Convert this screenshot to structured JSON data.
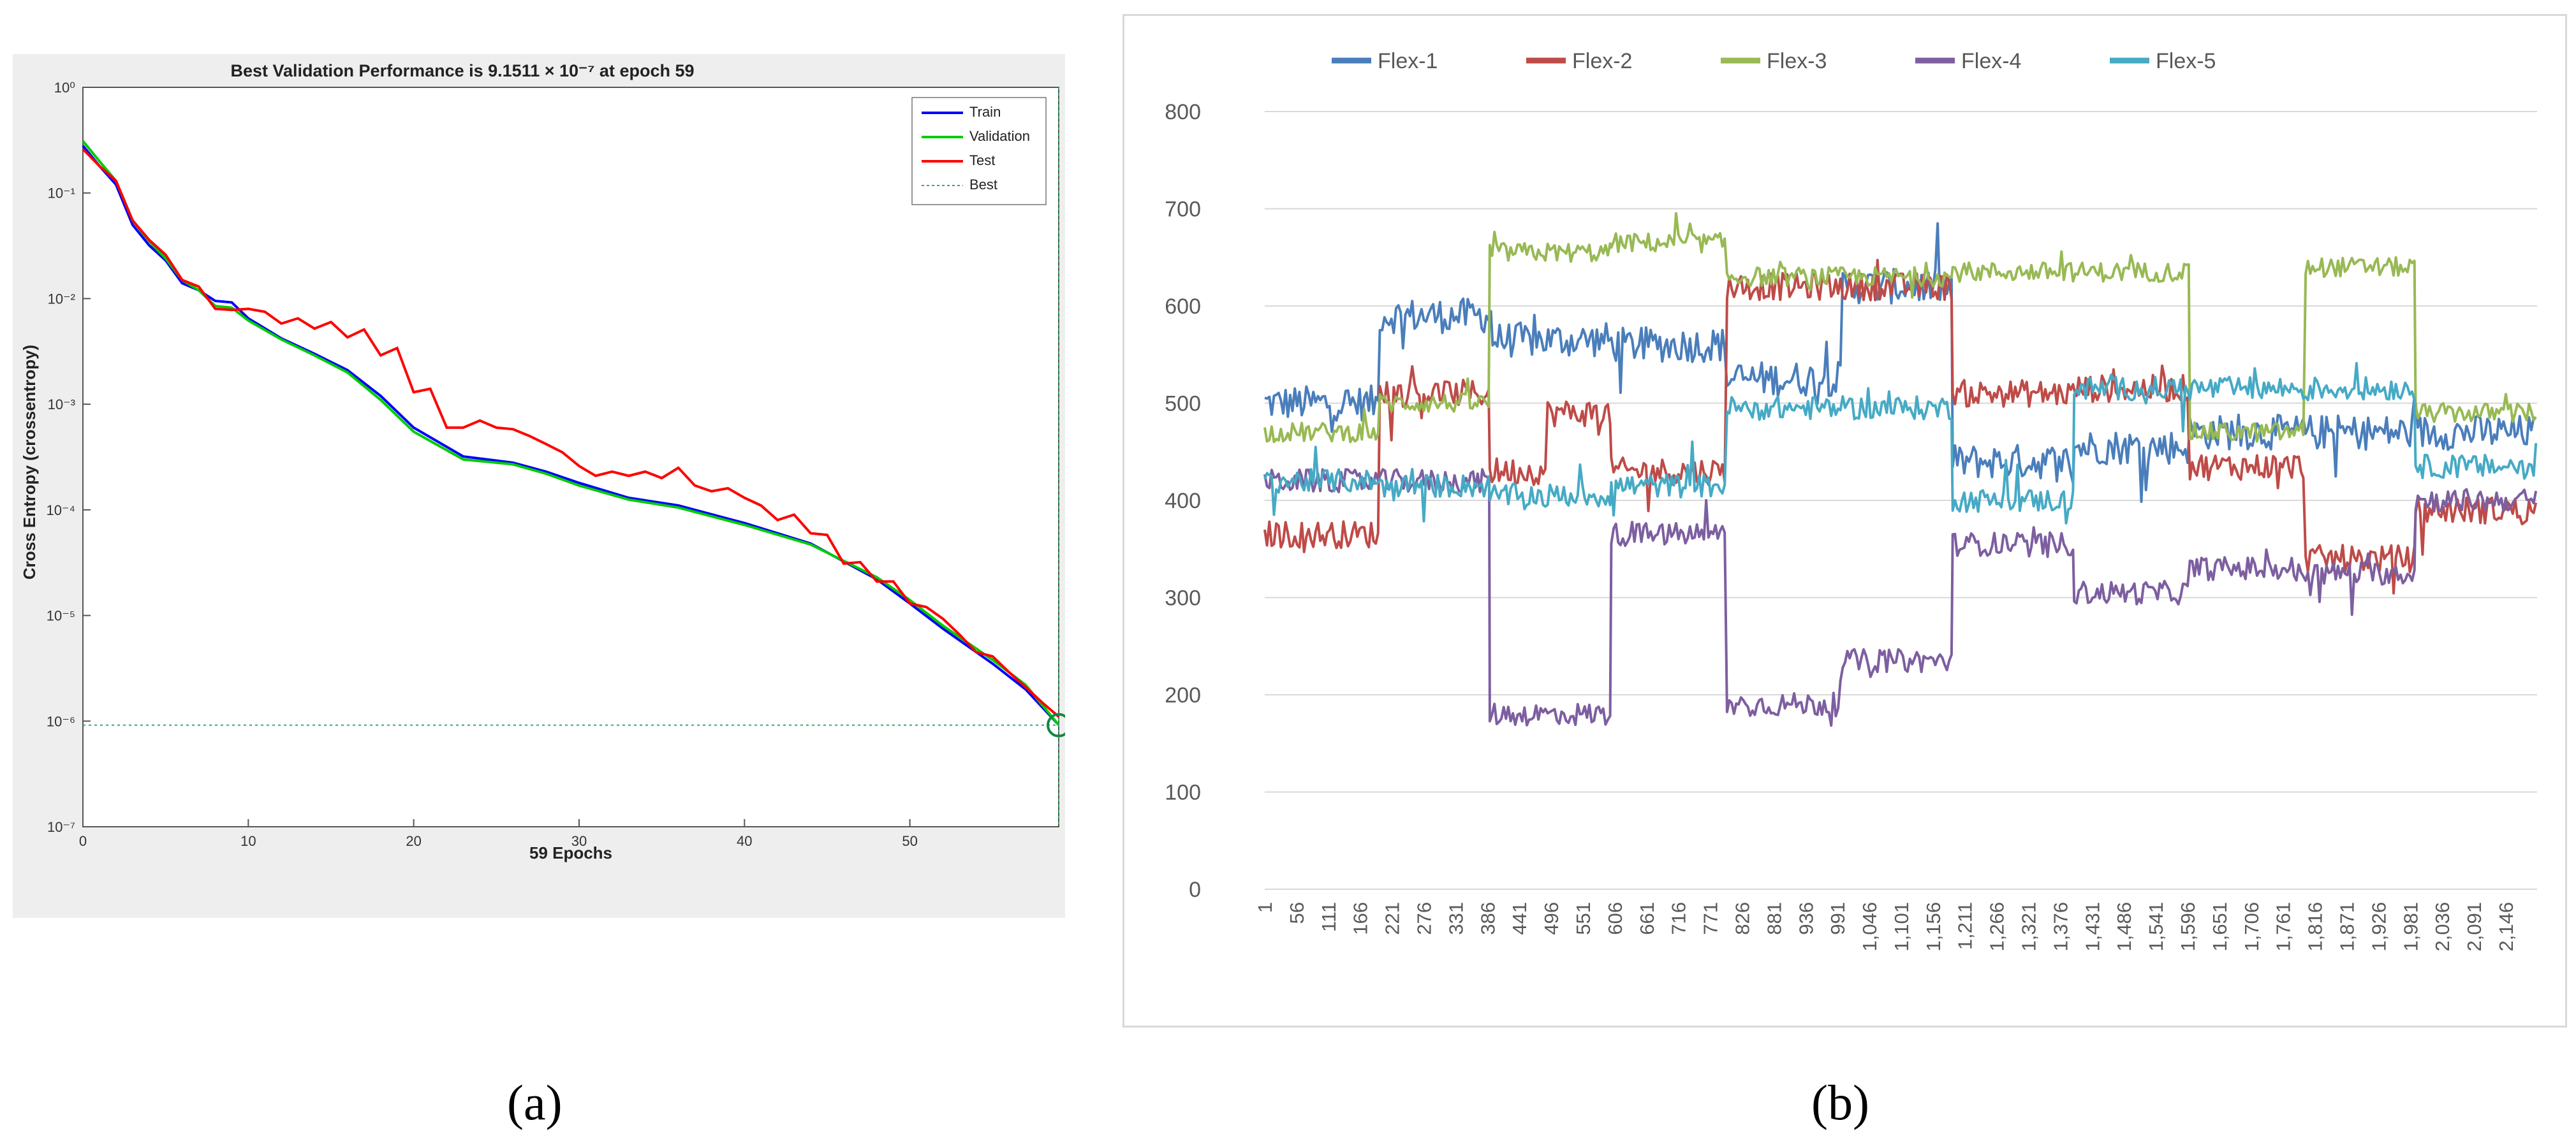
{
  "figure": {
    "caption_a": "(a)",
    "caption_b": "(b)"
  },
  "chart_data": [
    {
      "type": "line",
      "title": "Best Validation Performance is 9.1511 × 10⁻⁷ at epoch 59",
      "xlabel": "59 Epochs",
      "ylabel": "Cross Entropy  (crossentropy)",
      "yscale": "log",
      "xlim": [
        0,
        59
      ],
      "ylim_exp": [
        -7,
        0
      ],
      "xticks": [
        0,
        10,
        20,
        30,
        40,
        50
      ],
      "yticks": [
        {
          "exp": 0,
          "label": "10⁰"
        },
        {
          "exp": -1,
          "label": "10⁻¹"
        },
        {
          "exp": -2,
          "label": "10⁻²"
        },
        {
          "exp": -3,
          "label": "10⁻³"
        },
        {
          "exp": -4,
          "label": "10⁻⁴"
        },
        {
          "exp": -5,
          "label": "10⁻⁵"
        },
        {
          "exp": -6,
          "label": "10⁻⁶"
        },
        {
          "exp": -7,
          "label": "10⁻⁷"
        }
      ],
      "best": {
        "epoch": 59,
        "value": 9.1511e-07
      },
      "legend": [
        "Train",
        "Validation",
        "Test",
        "Best"
      ],
      "series": [
        {
          "name": "Train",
          "color": "#0000ff",
          "x": [
            0,
            1,
            2,
            3,
            4,
            5,
            6,
            7,
            8,
            9,
            10,
            12,
            14,
            16,
            18,
            20,
            23,
            26,
            28,
            30,
            33,
            36,
            40,
            44,
            48,
            50,
            52,
            55,
            57,
            59
          ],
          "values": [
            0.28,
            0.18,
            0.12,
            0.05,
            0.032,
            0.023,
            0.014,
            0.012,
            0.0095,
            0.0092,
            0.0065,
            0.0042,
            0.003,
            0.0021,
            0.0012,
            0.0006,
            0.00032,
            0.00028,
            0.00023,
            0.00018,
            0.00013,
            0.00011,
            7.5e-05,
            4.8e-05,
            2.2e-05,
            1.3e-05,
            7.5e-06,
            3.5e-06,
            2e-06,
            9.2e-07
          ]
        },
        {
          "name": "Validation",
          "color": "#00cc00",
          "x": [
            0,
            1,
            2,
            3,
            4,
            5,
            6,
            7,
            8,
            9,
            10,
            12,
            14,
            16,
            18,
            20,
            23,
            26,
            28,
            30,
            33,
            36,
            40,
            44,
            48,
            50,
            52,
            55,
            57,
            59
          ],
          "values": [
            0.31,
            0.2,
            0.13,
            0.055,
            0.035,
            0.024,
            0.015,
            0.012,
            0.0085,
            0.0082,
            0.0062,
            0.0041,
            0.0029,
            0.002,
            0.0011,
            0.00055,
            0.0003,
            0.00027,
            0.00022,
            0.00017,
            0.000125,
            0.000105,
            7.2e-05,
            4.7e-05,
            2.3e-05,
            1.4e-05,
            8e-06,
            3.8e-06,
            2.2e-06,
            9.2e-07
          ]
        },
        {
          "name": "Test",
          "color": "#ff0000",
          "x": [
            0,
            1,
            2,
            3,
            4,
            5,
            6,
            7,
            8,
            9,
            10,
            11,
            12,
            13,
            14,
            15,
            16,
            17,
            18,
            19,
            20,
            21,
            22,
            23,
            24,
            25,
            26,
            27,
            28,
            29,
            30,
            31,
            32,
            33,
            34,
            35,
            36,
            37,
            38,
            39,
            40,
            41,
            42,
            43,
            44,
            45,
            46,
            47,
            48,
            49,
            50,
            51,
            52,
            53,
            54,
            55,
            56,
            57,
            58,
            59
          ],
          "values": [
            0.26,
            0.18,
            0.13,
            0.055,
            0.036,
            0.026,
            0.015,
            0.013,
            0.008,
            0.0078,
            0.008,
            0.0075,
            0.0058,
            0.0065,
            0.0052,
            0.006,
            0.0043,
            0.0051,
            0.0029,
            0.0034,
            0.0013,
            0.0014,
            0.0006,
            0.0006,
            0.0007,
            0.0006,
            0.00058,
            0.0005,
            0.00042,
            0.00035,
            0.00026,
            0.00021,
            0.00023,
            0.00021,
            0.00023,
            0.0002,
            0.00025,
            0.00017,
            0.00015,
            0.00016,
            0.00013,
            0.00011,
            8e-05,
            9e-05,
            6e-05,
            5.8e-05,
            3.1e-05,
            3.2e-05,
            2.1e-05,
            2.1e-05,
            1.3e-05,
            1.2e-05,
            9.3e-06,
            6.6e-06,
            4.5e-06,
            4.1e-06,
            2.9e-06,
            2.1e-06,
            1.5e-06,
            1.1e-06
          ]
        }
      ]
    },
    {
      "type": "line",
      "title": "",
      "xlabel": "",
      "ylabel": "",
      "ylim": [
        0,
        800
      ],
      "yticks": [
        0,
        100,
        200,
        300,
        400,
        500,
        600,
        700,
        800
      ],
      "xlim": [
        1,
        2200
      ],
      "xticks": [
        1,
        56,
        111,
        166,
        221,
        276,
        331,
        386,
        441,
        496,
        551,
        606,
        661,
        716,
        771,
        826,
        881,
        936,
        991,
        1046,
        1101,
        1156,
        1211,
        1266,
        1321,
        1376,
        1431,
        1486,
        1541,
        1596,
        1651,
        1706,
        1761,
        1816,
        1871,
        1926,
        1981,
        2036,
        2091,
        2146
      ],
      "xtick_labels": [
        "1",
        "56",
        "111",
        "166",
        "221",
        "276",
        "331",
        "386",
        "441",
        "496",
        "551",
        "606",
        "661",
        "716",
        "771",
        "826",
        "881",
        "936",
        "991",
        "1,046",
        "1,101",
        "1,156",
        "1,211",
        "1,266",
        "1,321",
        "1,376",
        "1,431",
        "1,486",
        "1,541",
        "1,596",
        "1,651",
        "1,706",
        "1,761",
        "1,816",
        "1,871",
        "1,926",
        "1,981",
        "2,036",
        "2,091",
        "2,146"
      ],
      "legend_position": "top",
      "series": [
        {
          "name": "Flex-1",
          "color": "#4a7ebb",
          "noise": 18,
          "segments": [
            [
              1,
              200,
              500
            ],
            [
              200,
              395,
              590
            ],
            [
              395,
              600,
              565
            ],
            [
              600,
              800,
              560
            ],
            [
              800,
              1000,
              525
            ],
            [
              1000,
              1190,
              620
            ],
            [
              1190,
              1400,
              440
            ],
            [
              1400,
              1600,
              455
            ],
            [
              1600,
              1780,
              470
            ],
            [
              1780,
              1990,
              470
            ],
            [
              1990,
              2200,
              470
            ]
          ]
        },
        {
          "name": "Flex-2",
          "color": "#be4b48",
          "noise": 14,
          "segments": [
            [
              1,
              200,
              365
            ],
            [
              200,
              390,
              510
            ],
            [
              390,
              490,
              430
            ],
            [
              490,
              600,
              490
            ],
            [
              600,
              800,
              430
            ],
            [
              800,
              1190,
              620
            ],
            [
              1190,
              1400,
              510
            ],
            [
              1400,
              1600,
              515
            ],
            [
              1600,
              1800,
              435
            ],
            [
              1800,
              1990,
              340
            ],
            [
              1990,
              2200,
              390
            ]
          ]
        },
        {
          "name": "Flex-3",
          "color": "#98b954",
          "noise": 10,
          "segments": [
            [
              1,
              200,
              470
            ],
            [
              200,
              390,
              500
            ],
            [
              390,
              600,
              655
            ],
            [
              600,
              800,
              665
            ],
            [
              800,
              1190,
              630
            ],
            [
              1190,
              1600,
              635
            ],
            [
              1600,
              1800,
              470
            ],
            [
              1800,
              1990,
              640
            ],
            [
              1990,
              2200,
              490
            ]
          ]
        },
        {
          "name": "Flex-4",
          "color": "#7d5fa0",
          "noise": 12,
          "segments": [
            [
              1,
              390,
              420
            ],
            [
              390,
              600,
              180
            ],
            [
              600,
              800,
              365
            ],
            [
              800,
              1000,
              190
            ],
            [
              1000,
              1190,
              235
            ],
            [
              1190,
              1400,
              355
            ],
            [
              1400,
              1600,
              305
            ],
            [
              1600,
              1780,
              330
            ],
            [
              1780,
              1990,
              325
            ],
            [
              1990,
              2200,
              400
            ]
          ]
        },
        {
          "name": "Flex-5",
          "color": "#46aac5",
          "noise": 12,
          "segments": [
            [
              1,
              200,
              420
            ],
            [
              200,
              390,
              415
            ],
            [
              390,
              600,
              405
            ],
            [
              600,
              800,
              415
            ],
            [
              800,
              1190,
              495
            ],
            [
              1190,
              1400,
              400
            ],
            [
              1400,
              1990,
              515
            ],
            [
              1990,
              2200,
              435
            ]
          ]
        }
      ]
    }
  ]
}
